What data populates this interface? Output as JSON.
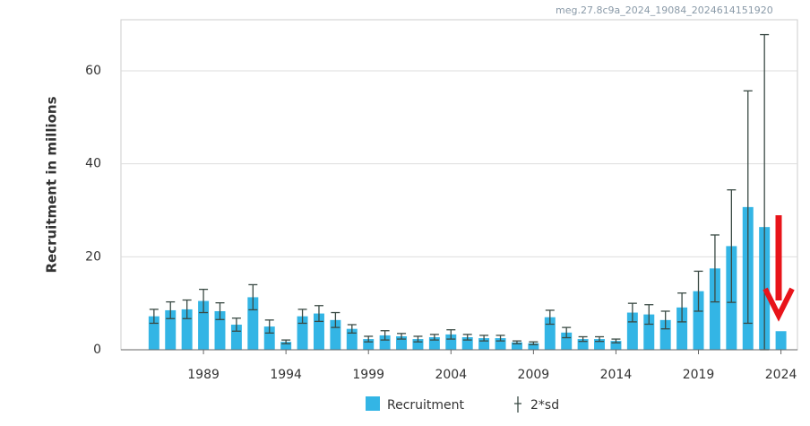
{
  "chart_data": {
    "type": "bar",
    "watermark": "meg.27.8c9a_2024_19084_2024614151920",
    "ylabel": "Recruitment in millions",
    "x": [
      1986,
      1987,
      1988,
      1989,
      1990,
      1991,
      1992,
      1993,
      1994,
      1995,
      1996,
      1997,
      1998,
      1999,
      2000,
      2001,
      2002,
      2003,
      2004,
      2005,
      2006,
      2007,
      2008,
      2009,
      2010,
      2011,
      2012,
      2013,
      2014,
      2015,
      2016,
      2017,
      2018,
      2019,
      2020,
      2021,
      2022,
      2023,
      2024
    ],
    "series": [
      {
        "name": "Recruitment",
        "color": "#33b5e5",
        "values": [
          7.2,
          8.5,
          8.7,
          10.5,
          8.3,
          5.4,
          11.3,
          5.0,
          1.7,
          7.2,
          7.8,
          6.4,
          4.5,
          2.3,
          3.1,
          2.9,
          2.3,
          2.7,
          3.3,
          2.7,
          2.5,
          2.5,
          1.6,
          1.4,
          7.0,
          3.7,
          2.3,
          2.3,
          1.9,
          8.0,
          7.6,
          6.4,
          9.1,
          12.6,
          17.5,
          22.3,
          30.7,
          26.4,
          4.0
        ]
      }
    ],
    "error_name": "2*sd",
    "error_color": "#3a4a44",
    "errors": [
      1.5,
      1.8,
      2.0,
      2.5,
      1.8,
      1.4,
      2.7,
      1.4,
      0.4,
      1.5,
      1.7,
      1.6,
      0.9,
      0.6,
      1.0,
      0.6,
      0.6,
      0.6,
      1.0,
      0.6,
      0.6,
      0.6,
      0.3,
      0.3,
      1.5,
      1.1,
      0.5,
      0.5,
      0.4,
      2.0,
      2.1,
      1.9,
      3.1,
      4.3,
      7.2,
      12.1,
      25.0,
      41.4,
      null
    ],
    "xlim": [
      1984,
      2025
    ],
    "xticks": [
      1989,
      1994,
      1999,
      2004,
      2009,
      2014,
      2019,
      2024
    ],
    "ylim": [
      0,
      71
    ],
    "yticks": [
      0,
      20,
      40,
      60
    ],
    "grid": true
  }
}
